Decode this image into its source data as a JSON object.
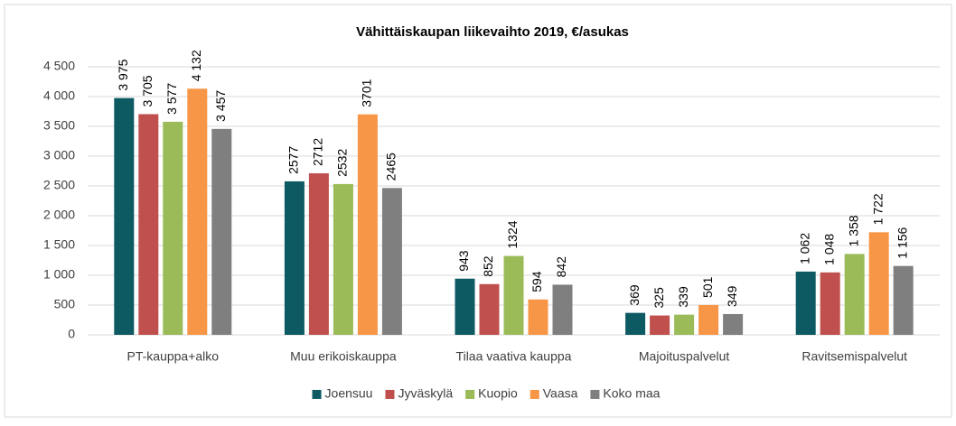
{
  "chart_data": {
    "type": "bar",
    "title": "Vähittäiskaupan liikevaihto 2019, €/asukas",
    "categories": [
      "PT-kauppa+alko",
      "Muu erikoiskauppa",
      "Tilaa vaativa kauppa",
      "Majoituspalvelut",
      "Ravitsemispalvelut"
    ],
    "series": [
      {
        "name": "Joensuu",
        "color": "#0e5a63",
        "values": [
          3975,
          2577,
          943,
          369,
          1062
        ],
        "value_labels": [
          "3 975",
          "2577",
          "943",
          "369",
          "1 062"
        ]
      },
      {
        "name": "Jyväskylä",
        "color": "#c0504d",
        "values": [
          3705,
          2712,
          852,
          325,
          1048
        ],
        "value_labels": [
          "3 705",
          "2712",
          "852",
          "325",
          "1 048"
        ]
      },
      {
        "name": "Kuopio",
        "color": "#9bbb59",
        "values": [
          3577,
          2532,
          1324,
          339,
          1358
        ],
        "value_labels": [
          "3 577",
          "2532",
          "1324",
          "339",
          "1 358"
        ]
      },
      {
        "name": "Vaasa",
        "color": "#f79646",
        "values": [
          4132,
          3701,
          594,
          501,
          1722
        ],
        "value_labels": [
          "4 132",
          "3701",
          "594",
          "501",
          "1 722"
        ]
      },
      {
        "name": "Koko maa",
        "color": "#7f7f7f",
        "values": [
          3457,
          2465,
          842,
          349,
          1156
        ],
        "value_labels": [
          "3 457",
          "2465",
          "842",
          "349",
          "1 156"
        ]
      }
    ],
    "ylim": [
      0,
      4500
    ],
    "yticks": [
      0,
      500,
      {
        "value": 1000,
        "label": "1 000"
      },
      {
        "value": 1500,
        "label": "1 500"
      },
      {
        "value": 2000,
        "label": "2 000"
      },
      {
        "value": 2500,
        "label": "2 500"
      },
      {
        "value": 3000,
        "label": "3 000"
      },
      {
        "value": 3500,
        "label": "3 500"
      },
      {
        "value": 4000,
        "label": "4 000"
      },
      {
        "value": 4500,
        "label": "4 500"
      }
    ],
    "grid": true,
    "legend": "bottom"
  }
}
